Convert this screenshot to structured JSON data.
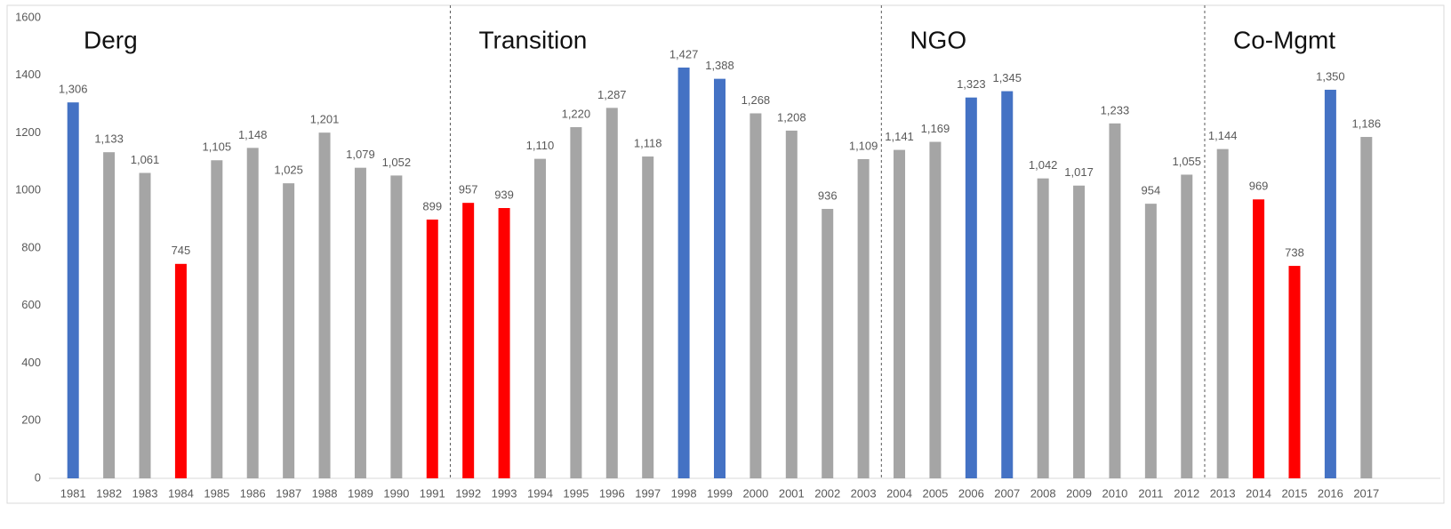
{
  "chart_data": {
    "type": "bar",
    "categories": [
      "1981",
      "1982",
      "1983",
      "1984",
      "1985",
      "1986",
      "1987",
      "1988",
      "1989",
      "1990",
      "1991",
      "1992",
      "1993",
      "1994",
      "1995",
      "1996",
      "1997",
      "1998",
      "1999",
      "2000",
      "2001",
      "2002",
      "2003",
      "2004",
      "2005",
      "2006",
      "2007",
      "2008",
      "2009",
      "2010",
      "2011",
      "2012",
      "2013",
      "2014",
      "2015",
      "2016",
      "2017"
    ],
    "values": [
      1306,
      1133,
      1061,
      745,
      1105,
      1148,
      1025,
      1201,
      1079,
      1052,
      899,
      957,
      939,
      1110,
      1220,
      1287,
      1118,
      1427,
      1388,
      1268,
      1208,
      936,
      1109,
      1141,
      1169,
      1323,
      1345,
      1042,
      1017,
      1233,
      954,
      1055,
      1144,
      969,
      738,
      1350,
      1186
    ],
    "value_labels": [
      "1,306",
      "1,133",
      "1,061",
      "745",
      "1,105",
      "1,148",
      "1,025",
      "1,201",
      "1,079",
      "1,052",
      "899",
      "957",
      "939",
      "1,110",
      "1,220",
      "1,287",
      "1,118",
      "1,427",
      "1,388",
      "1,268",
      "1,208",
      "936",
      "1,109",
      "1,141",
      "1,169",
      "1,323",
      "1,345",
      "1,042",
      "1,017",
      "1,233",
      "954",
      "1,055",
      "1,144",
      "969",
      "738",
      "1,350",
      "1,186"
    ],
    "colors": [
      "#4472c4",
      "#a5a5a5",
      "#a5a5a5",
      "#ff0000",
      "#a5a5a5",
      "#a5a5a5",
      "#a5a5a5",
      "#a5a5a5",
      "#a5a5a5",
      "#a5a5a5",
      "#ff0000",
      "#ff0000",
      "#ff0000",
      "#a5a5a5",
      "#a5a5a5",
      "#a5a5a5",
      "#a5a5a5",
      "#4472c4",
      "#4472c4",
      "#a5a5a5",
      "#a5a5a5",
      "#a5a5a5",
      "#a5a5a5",
      "#a5a5a5",
      "#a5a5a5",
      "#4472c4",
      "#4472c4",
      "#a5a5a5",
      "#a5a5a5",
      "#a5a5a5",
      "#a5a5a5",
      "#a5a5a5",
      "#a5a5a5",
      "#ff0000",
      "#ff0000",
      "#4472c4",
      "#a5a5a5"
    ],
    "ylim": [
      0,
      1600
    ],
    "yticks": [
      0,
      200,
      400,
      600,
      800,
      1000,
      1200,
      1400,
      1600
    ],
    "grid": false,
    "annotations": [
      {
        "text": "Derg",
        "from": "1981",
        "to": "1991"
      },
      {
        "text": "Transition",
        "from": "1992",
        "to": "2003"
      },
      {
        "text": "NGO",
        "from": "2004",
        "to": "2012"
      },
      {
        "text": "Co-Mgmt",
        "from": "2013",
        "to": "2017"
      }
    ]
  }
}
